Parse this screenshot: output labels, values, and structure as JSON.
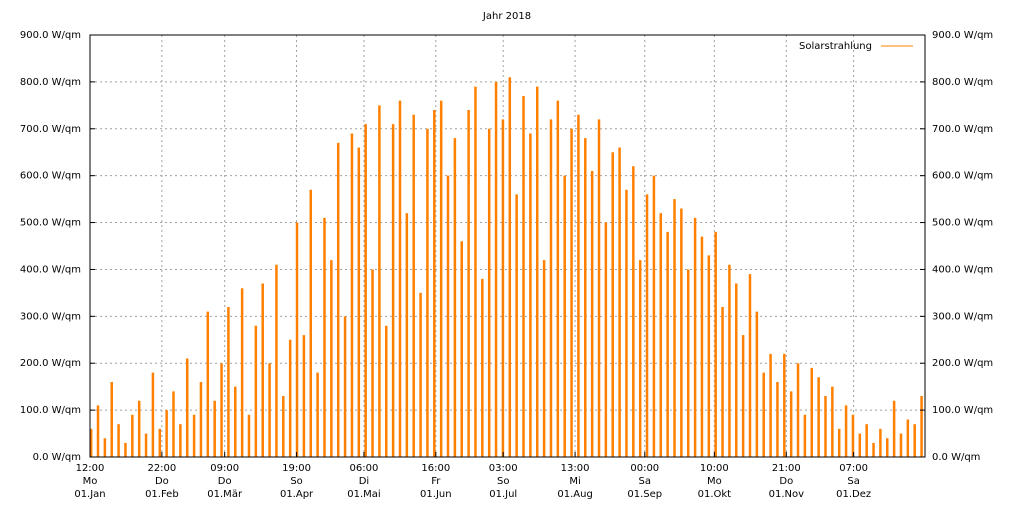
{
  "chart_data": {
    "type": "bar",
    "title": "Jahr 2018",
    "series": [
      {
        "name": "Solarstrahlung",
        "color": "#ff8000",
        "x": [
          1,
          4,
          7,
          10,
          13,
          16,
          19,
          22,
          25,
          28,
          31,
          34,
          37,
          40,
          43,
          46,
          49,
          52,
          55,
          58,
          61,
          64,
          67,
          70,
          73,
          76,
          79,
          82,
          85,
          88,
          91,
          94,
          97,
          100,
          103,
          106,
          109,
          112,
          115,
          118,
          121,
          124,
          127,
          130,
          133,
          136,
          139,
          142,
          145,
          148,
          151,
          154,
          157,
          160,
          163,
          166,
          169,
          172,
          175,
          178,
          181,
          184,
          187,
          190,
          193,
          196,
          199,
          202,
          205,
          208,
          211,
          214,
          217,
          220,
          223,
          226,
          229,
          232,
          235,
          238,
          241,
          244,
          247,
          250,
          253,
          256,
          259,
          262,
          265,
          268,
          271,
          274,
          277,
          280,
          283,
          286,
          289,
          292,
          295,
          298,
          301,
          304,
          307,
          310,
          313,
          316,
          319,
          322,
          325,
          328,
          331,
          334,
          337,
          340,
          343,
          346,
          349,
          352,
          355,
          358,
          361,
          364
        ],
        "values": [
          60,
          110,
          40,
          160,
          70,
          30,
          90,
          120,
          50,
          180,
          60,
          100,
          140,
          70,
          210,
          90,
          160,
          310,
          120,
          200,
          320,
          150,
          360,
          90,
          280,
          370,
          200,
          410,
          130,
          250,
          500,
          260,
          570,
          180,
          510,
          420,
          670,
          300,
          690,
          660,
          710,
          400,
          750,
          280,
          710,
          760,
          520,
          730,
          350,
          700,
          740,
          760,
          600,
          680,
          460,
          740,
          790,
          380,
          700,
          800,
          720,
          810,
          560,
          770,
          690,
          790,
          420,
          720,
          760,
          600,
          700,
          730,
          680,
          610,
          720,
          500,
          650,
          660,
          570,
          620,
          420,
          560,
          600,
          520,
          480,
          550,
          530,
          400,
          510,
          470,
          430,
          480,
          320,
          410,
          370,
          260,
          390,
          310,
          180,
          220,
          160,
          220,
          140,
          200,
          90,
          190,
          170,
          130,
          150,
          60,
          110,
          90,
          50,
          70,
          30,
          60,
          40,
          120,
          50,
          80,
          70,
          130
        ]
      }
    ],
    "xlim": [
      0.5,
      365.5
    ],
    "xticks": [
      {
        "value": 0.5,
        "label": [
          "12:00",
          "Mo",
          "01.Jan"
        ]
      },
      {
        "value": 31.917,
        "label": [
          "22:00",
          "Do",
          "01.Feb"
        ]
      },
      {
        "value": 59.375,
        "label": [
          "09:00",
          "Do",
          "01.Mär"
        ]
      },
      {
        "value": 90.792,
        "label": [
          "19:00",
          "So",
          "01.Apr"
        ]
      },
      {
        "value": 120.25,
        "label": [
          "06:00",
          "Di",
          "01.Mai"
        ]
      },
      {
        "value": 151.667,
        "label": [
          "16:00",
          "Fr",
          "01.Jun"
        ]
      },
      {
        "value": 181.125,
        "label": [
          "03:00",
          "So",
          "01.Jul"
        ]
      },
      {
        "value": 212.542,
        "label": [
          "13:00",
          "Mi",
          "01.Aug"
        ]
      },
      {
        "value": 243.0,
        "label": [
          "00:00",
          "Sa",
          "01.Sep"
        ]
      },
      {
        "value": 273.417,
        "label": [
          "10:00",
          "Mo",
          "01.Okt"
        ]
      },
      {
        "value": 304.875,
        "label": [
          "21:00",
          "Do",
          "01.Nov"
        ]
      },
      {
        "value": 334.292,
        "label": [
          "07:00",
          "Sa",
          "01.Dez"
        ]
      }
    ],
    "ylim": [
      0,
      900
    ],
    "yticks": [
      {
        "value": 0,
        "label": "0.0 W/qm"
      },
      {
        "value": 100,
        "label": "100.0 W/qm"
      },
      {
        "value": 200,
        "label": "200.0 W/qm"
      },
      {
        "value": 300,
        "label": "300.0 W/qm"
      },
      {
        "value": 400,
        "label": "400.0 W/qm"
      },
      {
        "value": 500,
        "label": "500.0 W/qm"
      },
      {
        "value": 600,
        "label": "600.0 W/qm"
      },
      {
        "value": 700,
        "label": "700.0 W/qm"
      },
      {
        "value": 800,
        "label": "800.0 W/qm"
      },
      {
        "value": 900,
        "label": "900.0 W/qm"
      }
    ],
    "grid": true,
    "legend": "top-right"
  }
}
